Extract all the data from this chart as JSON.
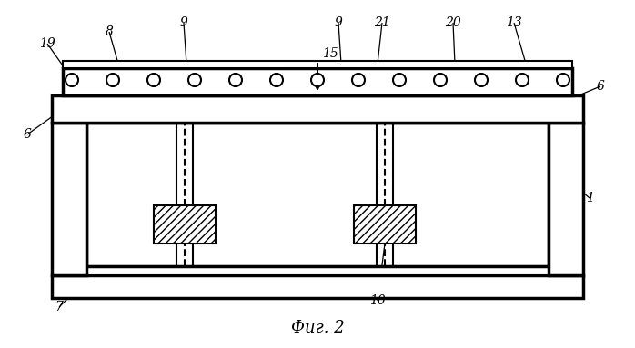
{
  "bg": "#ffffff",
  "lc": "#000000",
  "lw": 1.5,
  "lw2": 2.5,
  "fig_caption": "Фиг. 2",
  "n_circles": 13,
  "labels_text": [
    "19",
    "8",
    "9",
    "15",
    "9",
    "21",
    "20",
    "13",
    "6",
    "6",
    "1",
    "7",
    "10"
  ]
}
